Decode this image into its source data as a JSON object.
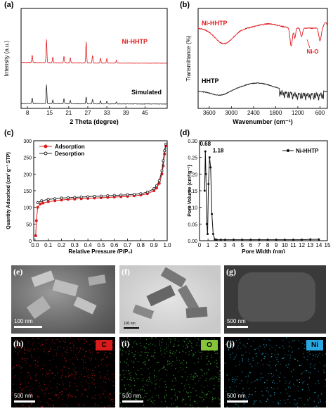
{
  "chart_data": [
    {
      "panel": "(a)",
      "type": "line",
      "xlabel": "2 Theta (degree)",
      "ylabel": "Intensity (a.u.)",
      "xlim": [
        6,
        52
      ],
      "xticks": [
        8,
        15,
        21,
        27,
        33,
        39,
        45
      ],
      "series": [
        {
          "name": "Ni-HHTP",
          "color": "#e0191d",
          "peaks": [
            [
              9.5,
              0.18
            ],
            [
              14,
              0.55
            ],
            [
              16,
              0.14
            ],
            [
              19.5,
              0.16
            ],
            [
              21.5,
              0.12
            ],
            [
              26.5,
              0.5
            ],
            [
              28.5,
              0.18
            ],
            [
              31,
              0.12
            ],
            [
              33,
              0.1
            ],
            [
              36,
              0.06
            ]
          ]
        },
        {
          "name": "Simulated",
          "color": "#222222",
          "peaks": [
            [
              9.5,
              0.18
            ],
            [
              14,
              0.6
            ],
            [
              16,
              0.12
            ],
            [
              19.5,
              0.16
            ],
            [
              21.5,
              0.1
            ],
            [
              26.5,
              0.22
            ],
            [
              28.5,
              0.14
            ],
            [
              31,
              0.1
            ],
            [
              33,
              0.08
            ],
            [
              36,
              0.06
            ]
          ]
        }
      ]
    },
    {
      "panel": "(b)",
      "type": "line",
      "xlabel": "Wavenumber (cm⁻¹)",
      "ylabel": "Transmittance (%)",
      "xlim": [
        3900,
        400
      ],
      "xticks": [
        3600,
        3000,
        2400,
        1800,
        1200,
        600
      ],
      "series": [
        {
          "name": "Ni-HHTP",
          "color": "#e0191d"
        },
        {
          "name": "HHTP",
          "color": "#222222"
        }
      ],
      "annotations": [
        "Ni-O"
      ]
    },
    {
      "panel": "(c)",
      "type": "line",
      "xlabel": "Relative Pressure (P/P₀)",
      "ylabel": "Quantity Adsorbed (cm³ g⁻¹ STP)",
      "xlim": [
        0,
        1.0
      ],
      "ylim": [
        0,
        300
      ],
      "xticks": [
        0.0,
        0.1,
        0.2,
        0.3,
        0.4,
        0.5,
        0.6,
        0.7,
        0.8,
        0.9,
        1.0
      ],
      "yticks": [
        0,
        50,
        100,
        150,
        200,
        250,
        300
      ],
      "series": [
        {
          "name": "Adsorption",
          "color": "#e0191d",
          "x": [
            0.005,
            0.01,
            0.02,
            0.04,
            0.06,
            0.1,
            0.15,
            0.2,
            0.25,
            0.3,
            0.35,
            0.4,
            0.45,
            0.5,
            0.55,
            0.6,
            0.65,
            0.7,
            0.75,
            0.8,
            0.85,
            0.9,
            0.92,
            0.94,
            0.96,
            0.97,
            0.98,
            0.99
          ],
          "y": [
            15,
            60,
            100,
            110,
            113,
            117,
            120,
            122,
            124,
            125,
            126,
            127,
            128,
            129,
            130,
            131,
            132,
            133,
            135,
            137,
            141,
            150,
            158,
            172,
            200,
            225,
            260,
            285
          ]
        },
        {
          "name": "Desorption",
          "color": "#222222",
          "x": [
            0.99,
            0.98,
            0.97,
            0.96,
            0.94,
            0.92,
            0.9,
            0.85,
            0.8,
            0.75,
            0.7,
            0.65,
            0.6,
            0.55,
            0.5,
            0.45,
            0.4,
            0.35,
            0.3,
            0.25,
            0.2,
            0.15,
            0.1,
            0.05,
            0.02
          ],
          "y": [
            290,
            270,
            240,
            210,
            180,
            165,
            156,
            146,
            141,
            139,
            138,
            137,
            136,
            135,
            134,
            133,
            132,
            131,
            130,
            129,
            128,
            126,
            124,
            120,
            114
          ]
        }
      ]
    },
    {
      "panel": "(d)",
      "type": "line",
      "xlabel": "Pore Width (nm)",
      "ylabel": "Pore Volume (cm³ g⁻¹)",
      "xlim": [
        0,
        15
      ],
      "ylim": [
        0,
        0.3
      ],
      "xticks": [
        0,
        1,
        2,
        3,
        4,
        5,
        6,
        7,
        8,
        9,
        10,
        11,
        12,
        13,
        14,
        15
      ],
      "yticks": [
        0.0,
        0.05,
        0.1,
        0.15,
        0.2,
        0.25,
        0.3
      ],
      "yticklabels": [
        "0.00",
        "0.05",
        "0.10",
        "0.15",
        "0.20",
        "0.25",
        "0.30"
      ],
      "annotations": [
        "0.68",
        "1.18"
      ],
      "series": [
        {
          "name": "Ni-HHTP",
          "color": "#111111",
          "x": [
            0.6,
            0.68,
            0.75,
            0.85,
            0.95,
            1.05,
            1.18,
            1.3,
            1.45,
            1.6,
            1.8,
            2.0,
            2.5,
            3,
            4,
            5,
            6,
            7,
            8,
            9,
            10,
            11,
            12,
            13,
            14
          ],
          "y": [
            0.15,
            0.268,
            0.2,
            0.05,
            0.02,
            0.17,
            0.25,
            0.22,
            0.08,
            0.02,
            0.004,
            0.003,
            0.003,
            0.003,
            0.003,
            0.003,
            0.003,
            0.003,
            0.003,
            0.003,
            0.003,
            0.003,
            0.003,
            0.004,
            0.004
          ]
        }
      ]
    }
  ],
  "images": {
    "e": {
      "label": "(e)",
      "scale": "100 nm"
    },
    "f": {
      "label": "(f)",
      "scale": "100 nm"
    },
    "g": {
      "label": "(g)",
      "scale": "500 nm"
    },
    "h": {
      "label": "(h)",
      "scale": "500 nm",
      "element": "C",
      "badge_color": "#d81c1c"
    },
    "i": {
      "label": "(i)",
      "scale": "500 nm",
      "element": "O",
      "badge_color": "#86c43a"
    },
    "j": {
      "label": "(j)",
      "scale": "500 nm",
      "element": "Ni",
      "badge_color": "#2aa6e0"
    }
  }
}
